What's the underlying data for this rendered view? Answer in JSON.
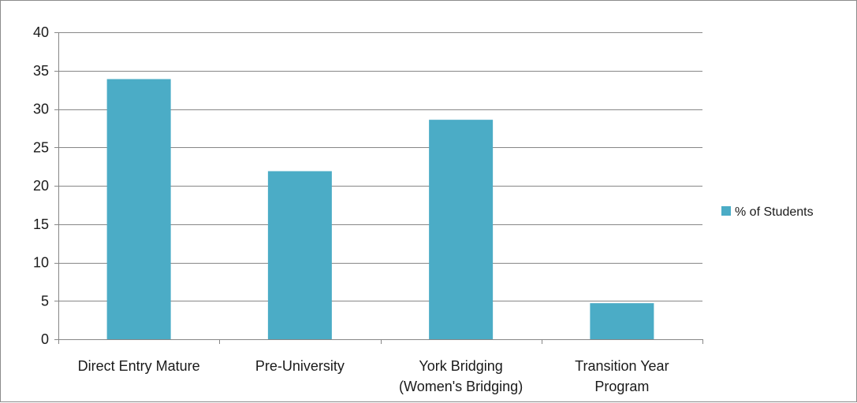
{
  "chart_data": {
    "type": "bar",
    "categories": [
      [
        "Direct Entry Mature"
      ],
      [
        "Pre-University"
      ],
      [
        "York Bridging",
        "(Women's Bridging)"
      ],
      [
        "Transition Year",
        "Program"
      ]
    ],
    "series": [
      {
        "name": "% of Students",
        "values": [
          33.9,
          21.9,
          28.6,
          4.7
        ]
      }
    ],
    "ylim": [
      0,
      40
    ],
    "yticks": [
      0,
      5,
      10,
      15,
      20,
      25,
      30,
      35,
      40
    ],
    "grid": true,
    "legend_position": "right",
    "colors": {
      "bar": "#4bacc6",
      "grid": "#878787",
      "axis": "#878787"
    }
  }
}
